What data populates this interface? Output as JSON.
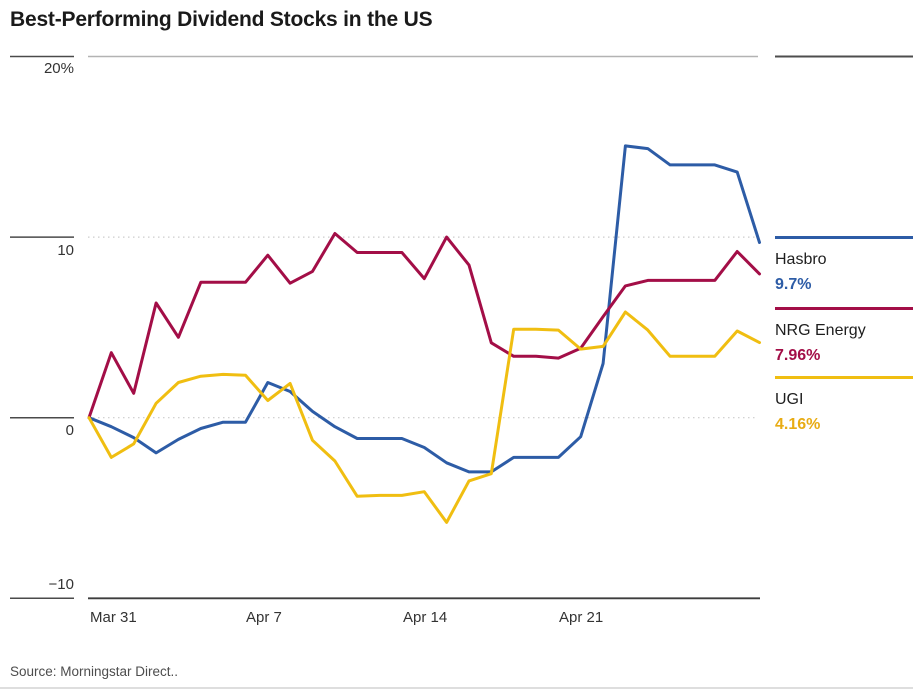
{
  "title": "Best-Performing Dividend Stocks in the US",
  "source": "Source: Morningstar Direct..",
  "chart_data": {
    "type": "line",
    "title": "Best-Performing Dividend Stocks in the US",
    "x_unit": "calendar days since Mar 31",
    "x_start_day": 0,
    "x_step_days": 1,
    "x_ticks": [
      {
        "label": "Mar 31",
        "day": 0
      },
      {
        "label": "Apr 7",
        "day": 7
      },
      {
        "label": "Apr 14",
        "day": 14
      },
      {
        "label": "Apr 21",
        "day": 21
      }
    ],
    "y_ticks": [
      {
        "label": "20%",
        "value": 20
      },
      {
        "label": "10",
        "value": 10
      },
      {
        "label": "0",
        "value": 0
      },
      {
        "label": "−10",
        "value": -10
      }
    ],
    "ylim": [
      -11.5,
      20
    ],
    "grid": "dotted horizontal gridlines at 0 and 10; solid top border at 20; solid baseline at -10",
    "legend_position": "right",
    "series": [
      {
        "name": "Hasbro",
        "final_value_label": "9.7%",
        "color": "#2D5CA6",
        "values": [
          0,
          -0.5,
          -1.1,
          -1.95,
          -1.2,
          -0.6,
          -0.25,
          -0.25,
          1.95,
          1.45,
          0.35,
          -0.5,
          -1.15,
          -1.15,
          -1.15,
          -1.65,
          -2.5,
          -3.0,
          -3.0,
          -2.2,
          -2.2,
          -2.2,
          -1.05,
          3.0,
          15.05,
          14.9,
          14.0,
          14.0,
          14.0,
          13.6,
          9.7
        ]
      },
      {
        "name": "NRG Energy",
        "final_value_label": "7.96%",
        "color": "#A30E47",
        "values": [
          0,
          3.6,
          1.35,
          6.35,
          4.45,
          7.5,
          7.5,
          7.5,
          9.0,
          7.45,
          8.1,
          10.2,
          9.15,
          9.15,
          9.15,
          7.7,
          10.0,
          8.45,
          4.15,
          3.4,
          3.4,
          3.3,
          3.85,
          5.6,
          7.3,
          7.6,
          7.6,
          7.6,
          7.6,
          9.2,
          7.96
        ]
      },
      {
        "name": "UGI",
        "final_value_label": "4.16%",
        "color": "#F0BE11",
        "values": [
          0,
          -2.2,
          -1.45,
          0.8,
          1.95,
          2.3,
          2.4,
          2.35,
          0.95,
          1.9,
          -1.25,
          -2.4,
          -4.35,
          -4.3,
          -4.3,
          -4.1,
          -5.8,
          -3.5,
          -3.1,
          4.9,
          4.9,
          4.85,
          3.8,
          3.95,
          5.85,
          4.85,
          3.4,
          3.4,
          3.4,
          4.8,
          4.16
        ]
      }
    ]
  },
  "colors": {
    "hasbro_blue": "#2D5CA6",
    "nrg_crimson": "#A30E47",
    "ugi_yellow": "#F0BE11",
    "axis_dark": "#4a4a4a",
    "grid_light": "#cccccc",
    "chart_top_border": "#b3b3b3"
  }
}
